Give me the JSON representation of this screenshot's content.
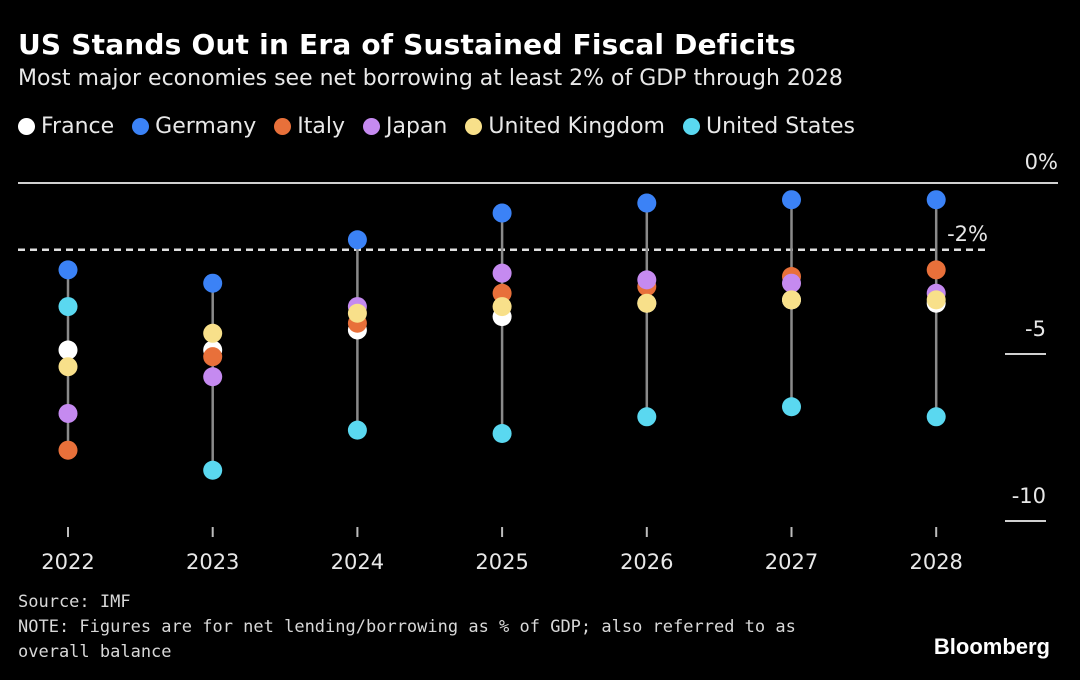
{
  "header": {
    "title": "US Stands Out in Era of Sustained Fiscal Deficits",
    "subtitle": "Most major economies see net borrowing at least 2% of GDP through 2028"
  },
  "legend": [
    {
      "label": "France",
      "color": "#ffffff"
    },
    {
      "label": "Germany",
      "color": "#3b82f6"
    },
    {
      "label": "Italy",
      "color": "#e8703a"
    },
    {
      "label": "Japan",
      "color": "#c58af0"
    },
    {
      "label": "United Kingdom",
      "color": "#f8e08a"
    },
    {
      "label": "United States",
      "color": "#5ad8f0"
    }
  ],
  "chart_data": {
    "type": "scatter",
    "title": "US Stands Out in Era of Sustained Fiscal Deficits",
    "subtitle": "Most major economies see net borrowing at least 2% of GDP through 2028",
    "categories": [
      "2022",
      "2023",
      "2024",
      "2025",
      "2026",
      "2027",
      "2028"
    ],
    "ylim": [
      -10.5,
      0.7
    ],
    "yticks": [
      {
        "value": 0,
        "label": "0%"
      },
      {
        "value": -2,
        "label": "-2%"
      },
      {
        "value": -5,
        "label": "-5"
      },
      {
        "value": -10,
        "label": "-10"
      }
    ],
    "reference_line": -2,
    "grid": false,
    "legend_position": "top-left",
    "series": [
      {
        "name": "France",
        "color": "#ffffff",
        "values": [
          -5.0,
          -5.0,
          -4.4,
          -4.0,
          -3.6,
          -3.5,
          -3.6
        ]
      },
      {
        "name": "Germany",
        "color": "#3b82f6",
        "values": [
          -2.6,
          -3.0,
          -1.7,
          -0.9,
          -0.6,
          -0.5,
          -0.5
        ]
      },
      {
        "name": "Italy",
        "color": "#e8703a",
        "values": [
          -8.0,
          -5.2,
          -4.2,
          -3.3,
          -3.1,
          -2.8,
          -2.6
        ]
      },
      {
        "name": "Japan",
        "color": "#c58af0",
        "values": [
          -6.9,
          -5.8,
          -3.7,
          -2.7,
          -2.9,
          -3.0,
          -3.3
        ]
      },
      {
        "name": "United Kingdom",
        "color": "#f8e08a",
        "values": [
          -5.5,
          -4.5,
          -3.9,
          -3.7,
          -3.6,
          -3.5,
          -3.5
        ]
      },
      {
        "name": "United States",
        "color": "#5ad8f0",
        "values": [
          -3.7,
          -8.6,
          -7.4,
          -7.5,
          -7.0,
          -6.7,
          -7.0
        ]
      }
    ]
  },
  "footer": {
    "source": "Source: IMF",
    "note": "NOTE: Figures are for net lending/borrowing as % of GDP; also referred to as overall balance"
  },
  "brand": "Bloomberg"
}
